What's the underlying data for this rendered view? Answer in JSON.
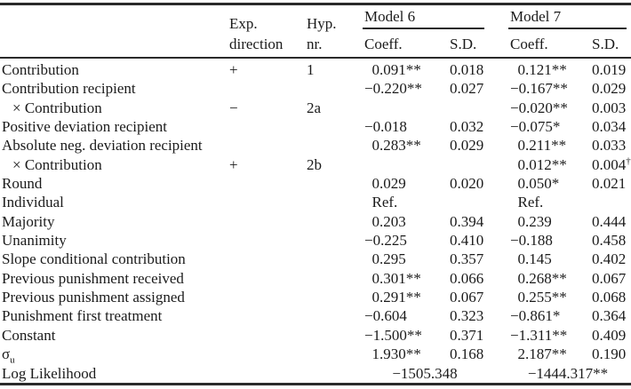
{
  "table": {
    "header": {
      "exp_line1": "Exp.",
      "exp_line2": "direction",
      "hyp_line1": "Hyp.",
      "hyp_line2": "nr.",
      "model6": "Model 6",
      "model7": "Model 7",
      "coeff": "Coeff.",
      "sd": "S.D."
    },
    "rows": [
      {
        "label": "Contribution",
        "exp": "+",
        "hyp": "1",
        "m6c": "0.091**",
        "m6sd": "0.018",
        "m7c": "0.121**",
        "m7sd": "0.019"
      },
      {
        "label": "Contribution recipient",
        "m6c": "−0.220**",
        "m6sd": "0.027",
        "m7c": "−0.167**",
        "m7sd": "0.029"
      },
      {
        "label": "× Contribution",
        "indent": true,
        "exp": "−",
        "hyp": "2a",
        "m7c": "−0.020**",
        "m7sd": "0.003"
      },
      {
        "label": "Positive deviation recipient",
        "m6c": "−0.018",
        "m6sd": "0.032",
        "m7c": "−0.075*",
        "m7sd": "0.034"
      },
      {
        "label": "Absolute neg. deviation recipient",
        "m6c": "0.283**",
        "m6sd": "0.029",
        "m7c": "0.211**",
        "m7sd": "0.033"
      },
      {
        "label": "× Contribution",
        "indent": true,
        "exp": "+",
        "hyp": "2b",
        "m7c": "0.012**",
        "m7sd": "0.004",
        "m7sd_sup": "†"
      },
      {
        "label": "Round",
        "m6c": "0.029",
        "m6sd": "0.020",
        "m7c": "0.050*",
        "m7sd": "0.021"
      },
      {
        "label": "Individual",
        "m6c": "Ref.",
        "m7c": "Ref."
      },
      {
        "label": "Majority",
        "m6c": "0.203",
        "m6sd": "0.394",
        "m7c": "0.239",
        "m7sd": "0.444"
      },
      {
        "label": "Unanimity",
        "m6c": "−0.225",
        "m6sd": "0.410",
        "m7c": "−0.188",
        "m7sd": "0.458"
      },
      {
        "label": "Slope conditional contribution",
        "m6c": "0.295",
        "m6sd": "0.357",
        "m7c": "0.145",
        "m7sd": "0.402"
      },
      {
        "label": "Previous punishment received",
        "m6c": "0.301**",
        "m6sd": "0.066",
        "m7c": "0.268**",
        "m7sd": "0.067"
      },
      {
        "label": "Previous punishment assigned",
        "m6c": "0.291**",
        "m6sd": "0.067",
        "m7c": "0.255**",
        "m7sd": "0.068"
      },
      {
        "label": "Punishment first treatment",
        "m6c": "−0.604",
        "m6sd": "0.323",
        "m7c": "−0.861*",
        "m7sd": "0.364"
      },
      {
        "label": "Constant",
        "m6c": "−1.500**",
        "m6sd": "0.371",
        "m7c": "−1.311**",
        "m7sd": "0.409"
      },
      {
        "label": "σ",
        "label_sub": "u",
        "m6c": "1.930**",
        "m6sd": "0.168",
        "m7c": "2.187**",
        "m7sd": "0.190"
      },
      {
        "label": "Log Likelihood",
        "m6span": "−1505.348",
        "m7span": "−1444.317**"
      }
    ],
    "colors": {
      "text": "#1b1b1b",
      "rule": "#2a2a2a",
      "background": "#ffffff"
    }
  }
}
